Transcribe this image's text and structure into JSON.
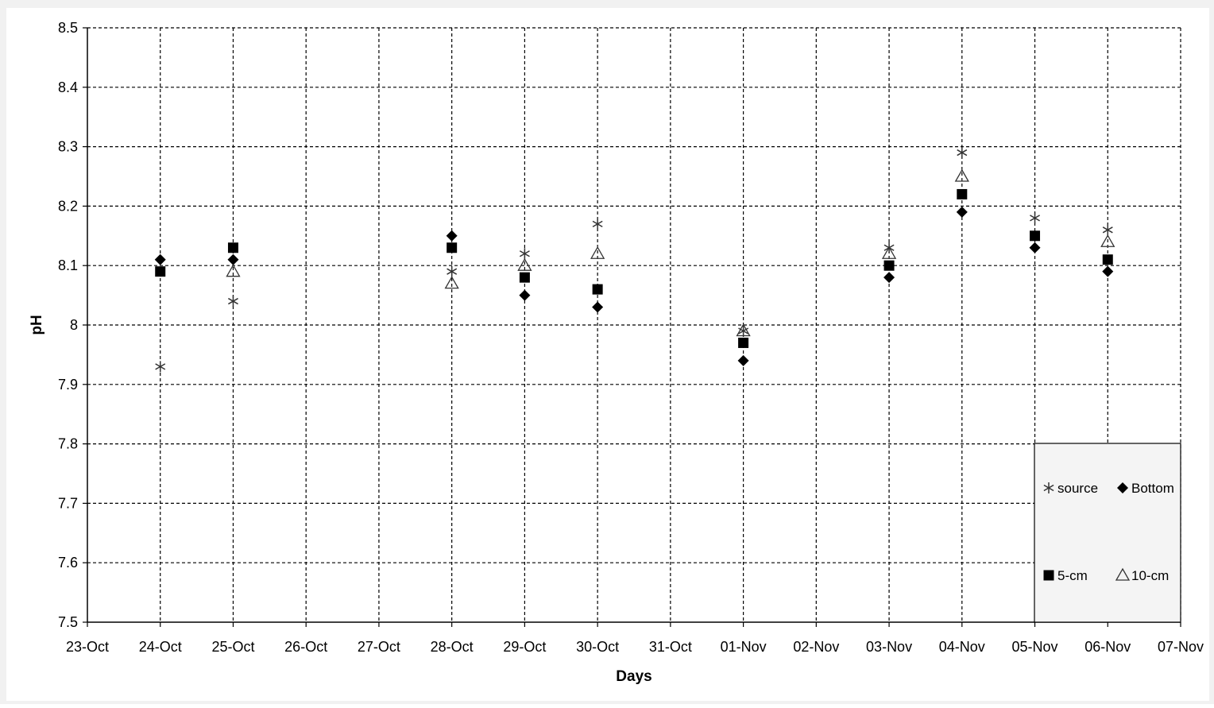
{
  "chart_data": {
    "type": "scatter",
    "title": "",
    "xlabel": "Days",
    "ylabel": "pH",
    "x_tick_labels": [
      "23-Oct",
      "24-Oct",
      "25-Oct",
      "26-Oct",
      "27-Oct",
      "28-Oct",
      "29-Oct",
      "30-Oct",
      "31-Oct",
      "01-Nov",
      "02-Nov",
      "03-Nov",
      "04-Nov",
      "05-Nov",
      "06-Nov",
      "07-Nov"
    ],
    "y_tick_labels": [
      "7.5",
      "7.6",
      "7.7",
      "7.8",
      "7.9",
      "8",
      "8.1",
      "8.2",
      "8.3",
      "8.4",
      "8.5"
    ],
    "ylim": [
      7.5,
      8.5
    ],
    "grid": true,
    "legend_position": "bottom-right",
    "x": [
      "24-Oct",
      "25-Oct",
      "28-Oct",
      "29-Oct",
      "30-Oct",
      "01-Nov",
      "03-Nov",
      "04-Nov",
      "05-Nov",
      "06-Nov"
    ],
    "series": [
      {
        "name": "source",
        "marker": "star",
        "color": "#444444",
        "values": [
          7.93,
          8.04,
          8.09,
          8.12,
          8.17,
          7.99,
          8.13,
          8.29,
          8.18,
          8.16
        ]
      },
      {
        "name": "Bottom",
        "marker": "diamond",
        "color": "#000000",
        "values": [
          8.11,
          8.11,
          8.15,
          8.05,
          8.03,
          7.94,
          8.08,
          8.19,
          8.13,
          8.09
        ]
      },
      {
        "name": "5-cm",
        "marker": "square",
        "color": "#000000",
        "values": [
          8.09,
          8.13,
          8.13,
          8.08,
          8.06,
          7.97,
          8.1,
          8.22,
          8.15,
          8.11
        ]
      },
      {
        "name": "10-cm",
        "marker": "triangle",
        "color": "#444444",
        "values": [
          null,
          8.09,
          8.07,
          8.1,
          8.12,
          7.99,
          8.12,
          8.25,
          null,
          8.14
        ]
      }
    ]
  }
}
